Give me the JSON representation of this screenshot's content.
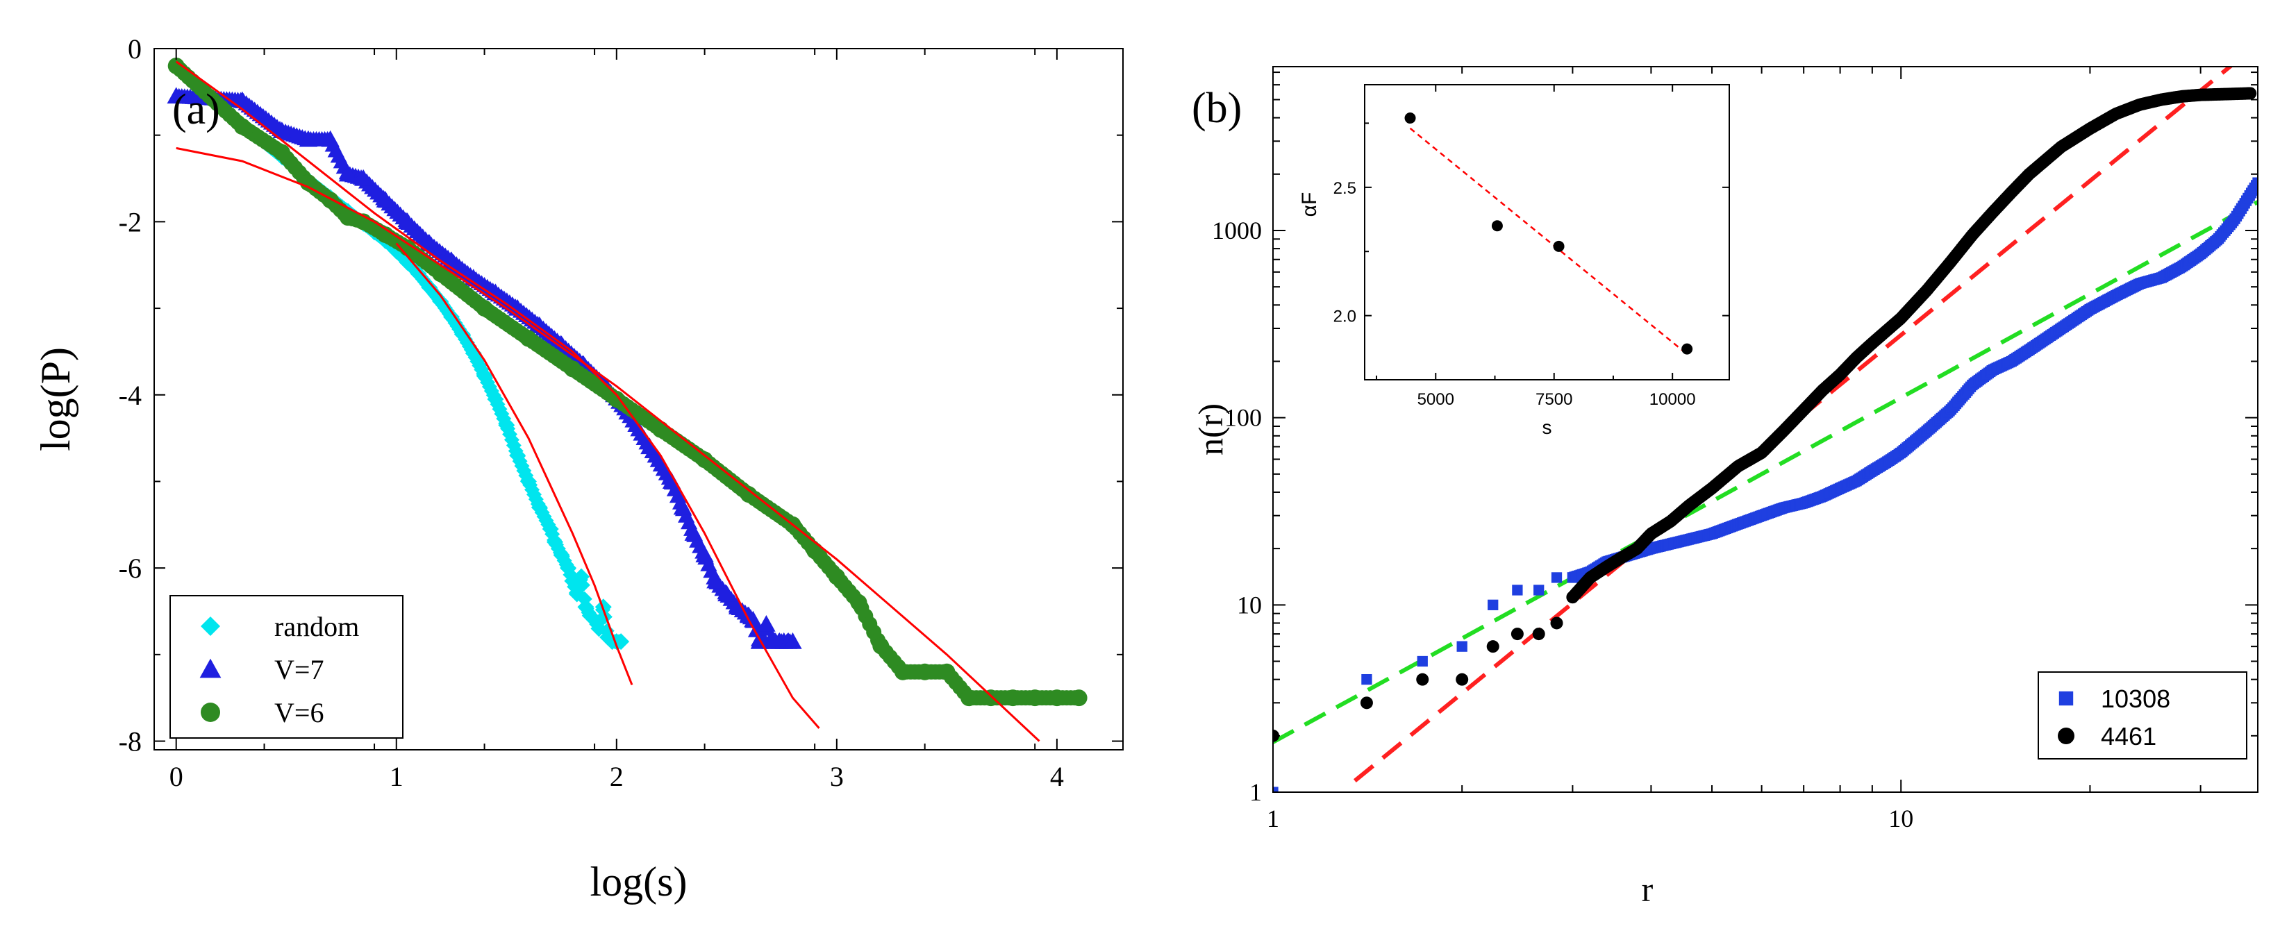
{
  "chart_data": [
    {
      "panel": "(a)",
      "type": "scatter",
      "xlabel": "log(s)",
      "ylabel": "log(P)",
      "xlim": [
        -0.1,
        4.3
      ],
      "ylim": [
        -8.1,
        0
      ],
      "xticks": [
        0,
        1,
        2,
        3,
        4
      ],
      "yticks": [
        0,
        -2,
        -4,
        -6,
        -8
      ],
      "xtick_labels": [
        "0",
        "1",
        "2",
        "3",
        "4"
      ],
      "ytick_labels": [
        "0",
        "-2",
        "-4",
        "-6",
        "-8"
      ],
      "legend_position": "bottom-left",
      "legend": [
        "random",
        "V=7",
        "V=6"
      ],
      "series": [
        {
          "name": "random",
          "color": "#00e5ee",
          "marker": "diamond",
          "x": [
            0.0,
            0.3,
            0.48,
            0.6,
            0.7,
            0.78,
            0.85,
            0.9,
            0.95,
            1.0,
            1.05,
            1.1,
            1.15,
            1.2,
            1.25,
            1.3,
            1.35,
            1.4,
            1.45,
            1.5,
            1.55,
            1.6,
            1.65,
            1.7,
            1.72,
            1.75,
            1.78,
            1.8,
            1.82,
            1.84,
            1.86,
            1.88,
            1.9,
            1.92,
            1.94,
            1.96,
            1.98,
            2.0,
            2.02
          ],
          "y": [
            -0.2,
            -0.88,
            -1.25,
            -1.52,
            -1.72,
            -1.88,
            -2.02,
            -2.12,
            -2.22,
            -2.34,
            -2.47,
            -2.6,
            -2.76,
            -2.92,
            -3.1,
            -3.3,
            -3.52,
            -3.78,
            -4.05,
            -4.35,
            -4.7,
            -5.0,
            -5.3,
            -5.55,
            -5.7,
            -5.85,
            -6.0,
            -6.15,
            -6.3,
            -6.1,
            -6.45,
            -6.55,
            -6.6,
            -6.7,
            -6.45,
            -6.8,
            -6.85,
            -6.85,
            -6.85
          ]
        },
        {
          "name": "V=7",
          "color": "#1f1fe0",
          "marker": "triangle",
          "x": [
            0.0,
            0.3,
            0.48,
            0.6,
            0.7,
            0.78,
            0.85,
            0.95,
            1.05,
            1.15,
            1.25,
            1.35,
            1.45,
            1.55,
            1.65,
            1.75,
            1.85,
            1.95,
            2.05,
            2.15,
            2.25,
            2.3,
            2.35,
            2.4,
            2.45,
            2.5,
            2.55,
            2.6,
            2.62,
            2.65,
            2.68,
            2.7,
            2.72,
            2.74,
            2.76,
            2.78,
            2.8
          ],
          "y": [
            -0.55,
            -0.6,
            -0.95,
            -1.05,
            -1.05,
            -1.45,
            -1.5,
            -1.75,
            -2.0,
            -2.25,
            -2.45,
            -2.65,
            -2.82,
            -3.0,
            -3.2,
            -3.42,
            -3.65,
            -3.9,
            -4.2,
            -4.6,
            -5.0,
            -5.3,
            -5.6,
            -5.85,
            -6.15,
            -6.3,
            -6.45,
            -6.55,
            -6.6,
            -6.85,
            -6.65,
            -6.85,
            -6.85,
            -6.85,
            -6.85,
            -6.85,
            -6.85
          ]
        },
        {
          "name": "V=6",
          "color": "#2e8b22",
          "marker": "circle",
          "x": [
            0.0,
            0.3,
            0.48,
            0.6,
            0.7,
            0.78,
            0.85,
            0.95,
            1.05,
            1.2,
            1.4,
            1.6,
            1.8,
            2.0,
            2.2,
            2.4,
            2.6,
            2.8,
            2.9,
            3.0,
            3.1,
            3.2,
            3.3,
            3.4,
            3.5,
            3.6,
            3.7,
            3.8,
            3.9,
            4.0,
            4.1
          ],
          "y": [
            -0.2,
            -0.9,
            -1.2,
            -1.55,
            -1.75,
            -1.95,
            -2.0,
            -2.15,
            -2.3,
            -2.6,
            -3.0,
            -3.35,
            -3.7,
            -4.05,
            -4.4,
            -4.75,
            -5.15,
            -5.5,
            -5.8,
            -6.1,
            -6.4,
            -6.9,
            -7.2,
            -7.2,
            -7.2,
            -7.5,
            -7.5,
            -7.5,
            -7.5,
            -7.5,
            -7.5
          ]
        }
      ],
      "fit_lines": [
        {
          "color": "#ff0000",
          "x": [
            1.0,
            1.2,
            1.4,
            1.6,
            1.7,
            1.8,
            1.9,
            2.0,
            2.07
          ],
          "y": [
            -2.25,
            -2.85,
            -3.6,
            -4.5,
            -5.05,
            -5.6,
            -6.2,
            -6.9,
            -7.35
          ]
        },
        {
          "color": "#ff0000",
          "x": [
            0.0,
            0.3,
            0.6,
            0.9,
            1.2,
            1.5,
            1.8,
            2.0,
            2.2,
            2.4,
            2.6,
            2.8,
            2.92
          ],
          "y": [
            -0.15,
            -0.7,
            -1.3,
            -1.9,
            -2.45,
            -2.95,
            -3.5,
            -4.0,
            -4.7,
            -5.6,
            -6.6,
            -7.5,
            -7.85
          ]
        },
        {
          "color": "#ff0000",
          "x": [
            0.0,
            0.3,
            0.6,
            0.9,
            1.2,
            1.5,
            2.0,
            2.5,
            3.0,
            3.5,
            3.92
          ],
          "y": [
            -1.15,
            -1.3,
            -1.6,
            -2.0,
            -2.5,
            -3.0,
            -3.9,
            -4.9,
            -5.9,
            -7.0,
            -8.0
          ]
        }
      ]
    },
    {
      "panel": "(b)",
      "type": "scatter",
      "xlabel": "r",
      "ylabel": "n(r)",
      "xscale": "log",
      "yscale": "log",
      "xlim": [
        1,
        37
      ],
      "ylim": [
        1,
        7500
      ],
      "xticks": [
        1,
        10
      ],
      "yticks": [
        1,
        10,
        100,
        1000
      ],
      "xtick_labels": [
        "1",
        "10"
      ],
      "ytick_labels": [
        "1",
        "10",
        "100",
        "1000"
      ],
      "legend_position": "bottom-right",
      "legend": [
        "10308",
        "4461"
      ],
      "series": [
        {
          "name": "10308",
          "color": "#1f3fe0",
          "marker": "square",
          "x": [
            1.0,
            1.41,
            1.73,
            2.0,
            2.24,
            2.45,
            2.65,
            2.83,
            3.0,
            3.2,
            3.4,
            3.6,
            3.8,
            4.0,
            4.5,
            5.0,
            5.5,
            6.0,
            6.5,
            7.0,
            7.5,
            8.0,
            8.5,
            9.0,
            9.5,
            10.0,
            11.0,
            12.0,
            13.0,
            14.0,
            15.0,
            16.0,
            18.0,
            20.0,
            22.0,
            24.0,
            26.0,
            28.0,
            30.0,
            32.0,
            34.0,
            37.0
          ],
          "y": [
            1,
            4,
            5,
            6,
            10,
            12,
            12,
            14,
            14,
            15,
            17,
            18,
            19,
            20,
            22,
            24,
            27,
            30,
            33,
            35,
            38,
            42,
            46,
            52,
            58,
            65,
            85,
            110,
            150,
            180,
            200,
            230,
            300,
            380,
            450,
            520,
            560,
            640,
            750,
            900,
            1150,
            1800
          ]
        },
        {
          "name": "4461",
          "color": "#000000",
          "marker": "circle",
          "x": [
            1.0,
            1.41,
            1.73,
            2.0,
            2.24,
            2.45,
            2.65,
            2.83,
            3.0,
            3.2,
            3.4,
            3.6,
            3.8,
            4.0,
            4.3,
            4.6,
            5.0,
            5.5,
            6.0,
            6.5,
            7.0,
            7.5,
            8.0,
            8.5,
            9.0,
            10.0,
            11.0,
            12.0,
            13.0,
            14.0,
            15.0,
            16.0,
            18.0,
            20.0,
            22.0,
            24.0,
            26.0,
            28.0,
            30.0,
            33.0,
            36.0
          ],
          "y": [
            2,
            3,
            4,
            4,
            6,
            7,
            7,
            8,
            11,
            14,
            16,
            18,
            20,
            24,
            28,
            34,
            42,
            55,
            65,
            85,
            110,
            140,
            170,
            210,
            250,
            340,
            480,
            680,
            950,
            1250,
            1600,
            2000,
            2800,
            3500,
            4200,
            4700,
            5000,
            5200,
            5300,
            5350,
            5400
          ]
        }
      ],
      "fit_lines": [
        {
          "color": "#ff2020",
          "style": "dashed",
          "x": [
            1.35,
            36.0
          ],
          "y": [
            1.15,
            9200
          ]
        },
        {
          "color": "#22dd22",
          "style": "dashed",
          "x": [
            1.0,
            37.0
          ],
          "y": [
            1.85,
            1420
          ]
        }
      ],
      "inset": {
        "type": "scatter",
        "xlabel": "s",
        "ylabel": "αF",
        "xlim": [
          3500,
          11200
        ],
        "ylim": [
          1.75,
          2.9
        ],
        "xticks": [
          5000,
          7500,
          10000
        ],
        "yticks": [
          2.0,
          2.5
        ],
        "xtick_labels": [
          "5000",
          "7500",
          "10000"
        ],
        "ytick_labels": [
          "2.0",
          "2.5"
        ],
        "points": {
          "color": "#000000",
          "x": [
            4461,
            6300,
            7600,
            10308
          ],
          "y": [
            2.77,
            2.35,
            2.27,
            1.87
          ]
        },
        "fit_line": {
          "color": "#ff0000",
          "style": "dotted",
          "x": [
            4461,
            10308
          ],
          "y": [
            2.73,
            1.85
          ]
        }
      }
    }
  ]
}
